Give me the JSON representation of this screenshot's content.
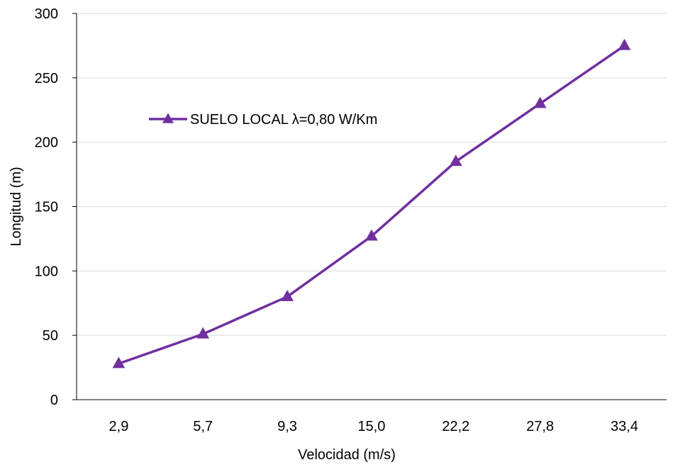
{
  "chart_data": {
    "type": "line",
    "title": "",
    "xlabel": "Velocidad (m/s)",
    "ylabel": "Longitud (m)",
    "categories": [
      "2,9",
      "5,7",
      "9,3",
      "15,0",
      "22,2",
      "27,8",
      "33,4"
    ],
    "ylim": [
      0,
      300
    ],
    "yticks": [
      0,
      50,
      100,
      150,
      200,
      250,
      300
    ],
    "grid": "horizontal",
    "legend_position": "top-left",
    "series": [
      {
        "name": "SUELO LOCAL λ=0,80 W/Km",
        "values": [
          28,
          51,
          80,
          127,
          185,
          230,
          275
        ],
        "color": "#7030a0",
        "marker": "triangle"
      }
    ]
  }
}
